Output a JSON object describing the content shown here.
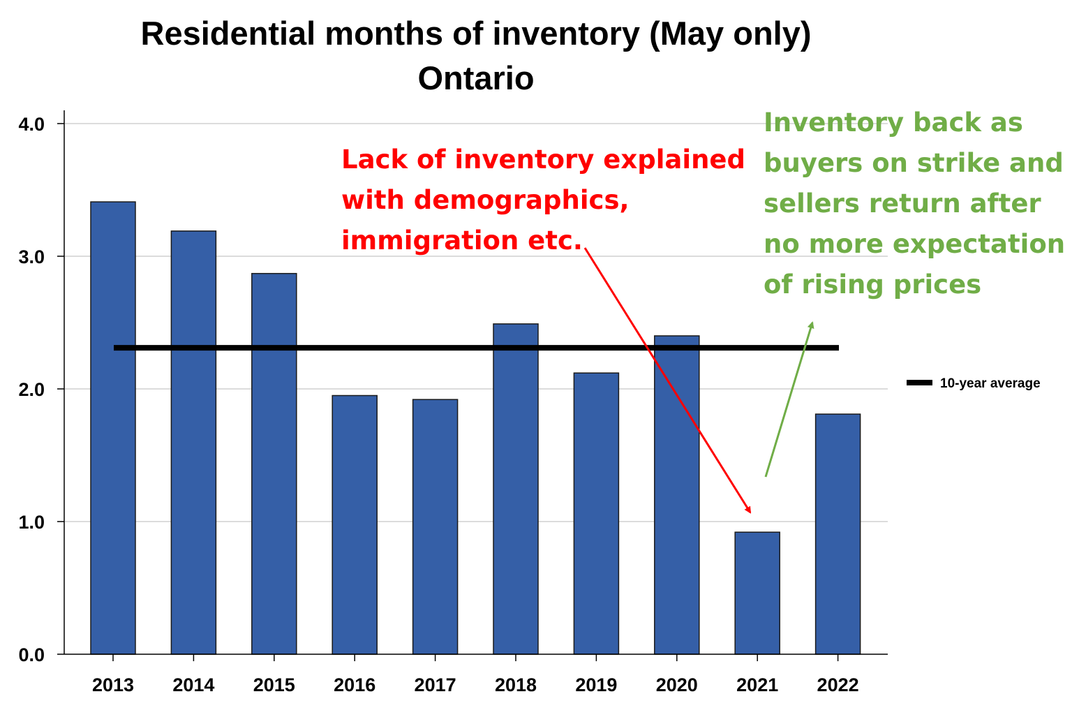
{
  "chart_data": {
    "type": "bar",
    "title": "Residential months of inventory (May only)",
    "subtitle": "Ontario",
    "categories": [
      "2013",
      "2014",
      "2015",
      "2016",
      "2017",
      "2018",
      "2019",
      "2020",
      "2021",
      "2022"
    ],
    "values": [
      3.41,
      3.19,
      2.87,
      1.95,
      1.92,
      2.49,
      2.12,
      2.4,
      0.92,
      1.81
    ],
    "reference_line": {
      "name": "10-year average",
      "value": 2.31
    },
    "ylim": [
      0,
      4
    ],
    "yticks": [
      "0.0",
      "1.0",
      "2.0",
      "3.0",
      "4.0"
    ],
    "xlabel": "",
    "ylabel": "",
    "grid": true,
    "legend": "right",
    "colors": {
      "bar": "#355fa7",
      "bar_edge": "#1a1a1a",
      "average": "#000000",
      "red_note": "#ff0000",
      "green_note": "#70ad47"
    },
    "annotations": [
      {
        "lines": [
          "Lack of inventory explained",
          "with demographics,",
          "immigration etc."
        ],
        "color": "#ff0000",
        "points_to": "2021"
      },
      {
        "lines": [
          "Inventory back as",
          "buyers on strike and",
          "sellers return after",
          "no more expectation",
          "of rising prices"
        ],
        "color": "#70ad47",
        "points_to": "2022"
      }
    ]
  }
}
